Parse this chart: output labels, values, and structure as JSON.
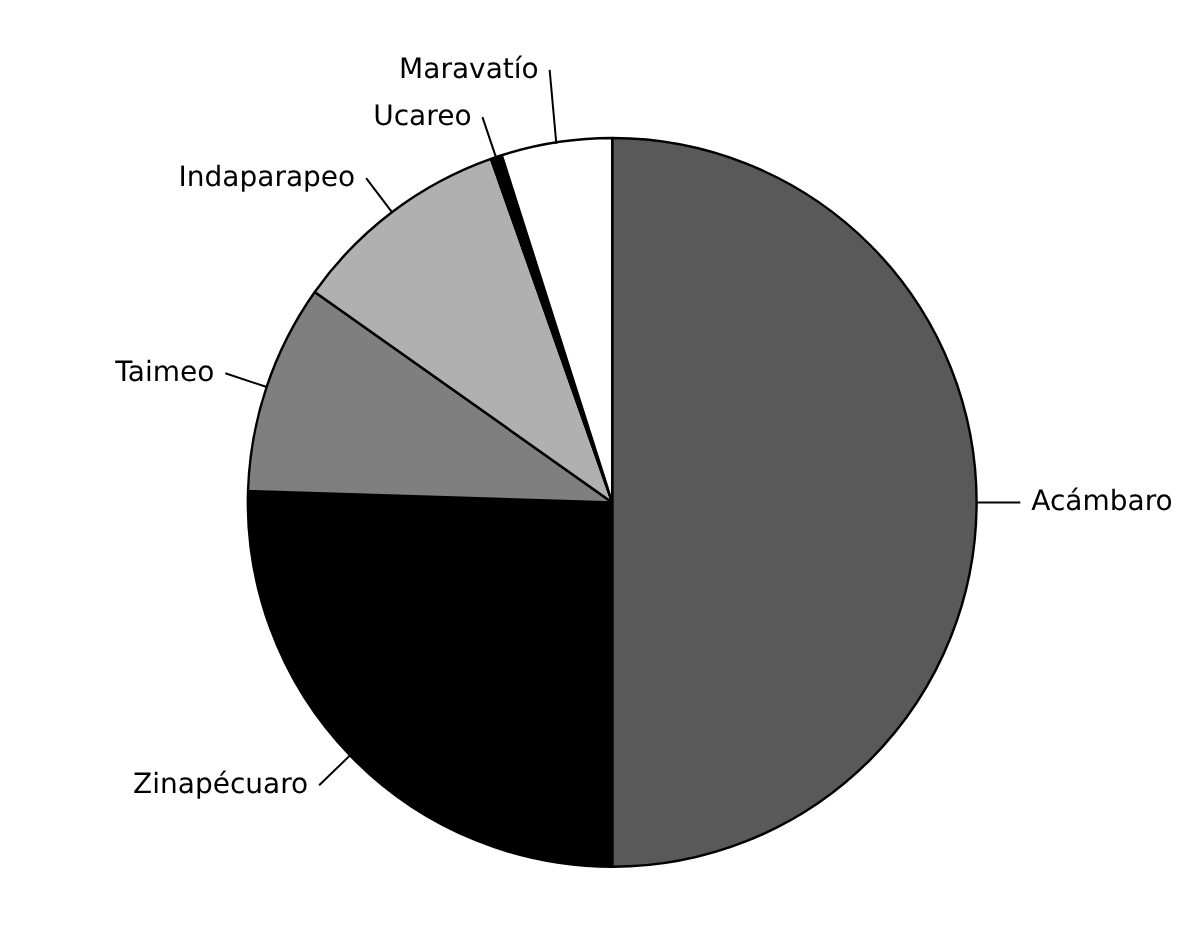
{
  "chart_data": {
    "type": "pie",
    "categories": [
      "Acámbaro",
      "Zinapécuaro",
      "Taimeo",
      "Indaparapeo",
      "Ucareo",
      "Maravatío"
    ],
    "values": [
      50,
      25.5,
      9.3,
      9.8,
      0.5,
      4.9
    ],
    "colors": [
      "#595959",
      "#000000",
      "#7f7f7f",
      "#b0b0b0",
      "#000000",
      "#ffffff"
    ]
  }
}
